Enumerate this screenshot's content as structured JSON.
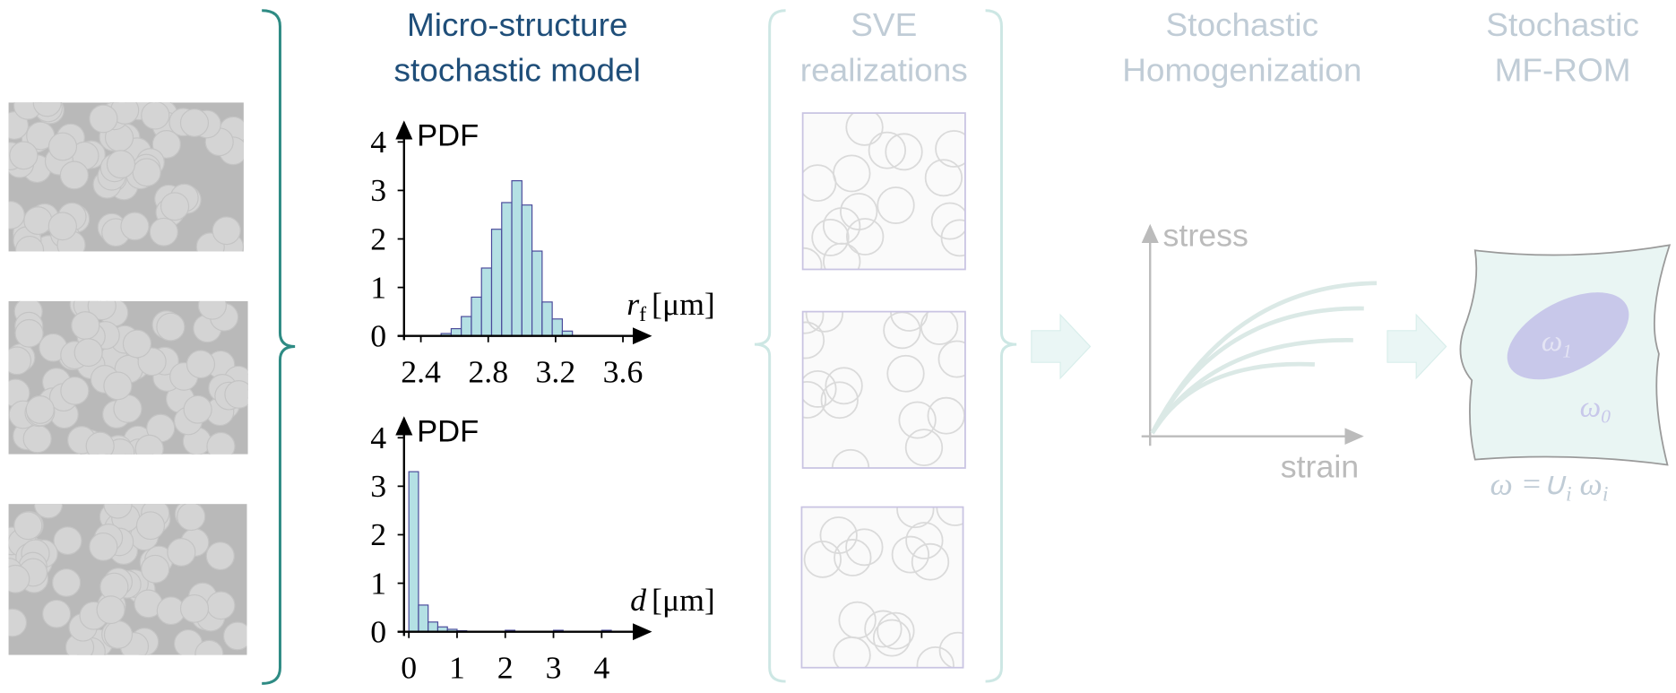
{
  "headers": [
    {
      "lines": [
        "Micro-structure",
        "stochastic model"
      ]
    },
    {
      "lines": [
        "SVE",
        "realizations"
      ]
    },
    {
      "lines": [
        "Stochastic",
        "Homogenization"
      ]
    },
    {
      "lines": [
        "Stochastic",
        "MF-ROM"
      ]
    }
  ],
  "chart_data": [
    {
      "type": "histogram",
      "color": "#b4e0e4",
      "edge_color": "#4a4a9a",
      "y_label": "PDF",
      "x_label": {
        "symbol": "r",
        "subscript": "f",
        "unit": "[μm]"
      },
      "bins": [
        2.52,
        2.58,
        2.64,
        2.7,
        2.76,
        2.82,
        2.88,
        2.94,
        3.0,
        3.06,
        3.12,
        3.18,
        3.24,
        3.3
      ],
      "values": [
        0.05,
        0.15,
        0.4,
        0.8,
        1.4,
        2.2,
        2.75,
        3.2,
        2.7,
        1.75,
        0.7,
        0.35,
        0.1
      ],
      "xlim": [
        2.3,
        3.76
      ],
      "ylim": [
        0,
        4.4
      ],
      "xticks": [
        2.4,
        2.8,
        3.2,
        3.6
      ],
      "yticks": [
        0,
        1,
        2,
        3,
        4
      ]
    },
    {
      "type": "histogram",
      "color": "#b4e0e4",
      "edge_color": "#4a4a9a",
      "y_label": "PDF",
      "x_label": {
        "symbol": "d",
        "subscript": null,
        "unit": "[μm]"
      },
      "bins": [
        0,
        0.2,
        0.4,
        0.6,
        0.8,
        1.0,
        1.2,
        1.4,
        1.6,
        1.8,
        2.0,
        2.2,
        2.4,
        2.6,
        2.8,
        3.0,
        3.2,
        3.4,
        3.6,
        3.8,
        4.0,
        4.2
      ],
      "values": [
        3.3,
        0.55,
        0.2,
        0.1,
        0.05,
        0.02,
        0,
        0,
        0,
        0,
        0.03,
        0,
        0,
        0,
        0,
        0.03,
        0,
        0,
        0,
        0,
        0.03
      ],
      "xlim": [
        -0.1,
        5
      ],
      "ylim": [
        0,
        4.4
      ],
      "xticks": [
        0,
        1,
        2,
        3,
        4
      ],
      "yticks": [
        0,
        1,
        2,
        3,
        4
      ]
    }
  ],
  "stress_strain": {
    "y_label": "stress",
    "x_label": "strain"
  },
  "rom": {
    "omega1": {
      "symbol": "ω",
      "subscript": "1"
    },
    "omega0": {
      "symbol": "ω",
      "subscript": "0"
    },
    "union": {
      "lhs": "ω =∪",
      "index": "i",
      "rhs": " ω",
      "rhs_index": "i"
    }
  }
}
